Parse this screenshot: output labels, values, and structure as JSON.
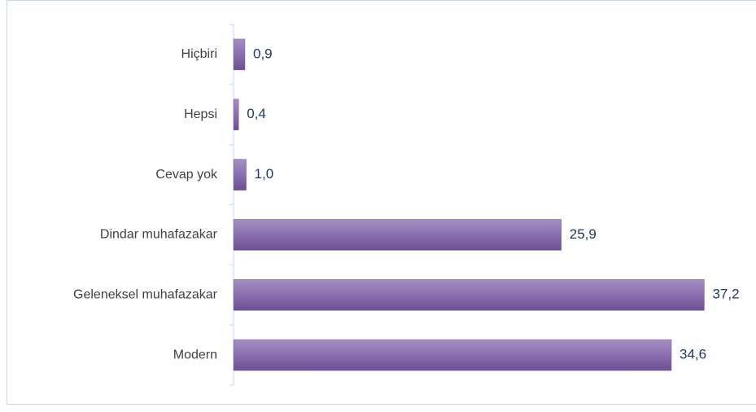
{
  "chart_data": {
    "type": "bar",
    "orientation": "horizontal",
    "categories": [
      "Hiçbiri",
      "Hepsi",
      "Cevap yok",
      "Dindar muhafazakar",
      "Geleneksel muhafazakar",
      "Modern"
    ],
    "values": [
      0.9,
      0.4,
      1.0,
      25.9,
      37.2,
      34.6
    ],
    "value_labels": [
      "0,9",
      "0,4",
      "1,0",
      "25,9",
      "37,2",
      "34,6"
    ],
    "color": "#8064a2",
    "xlim": [
      0,
      40
    ]
  }
}
